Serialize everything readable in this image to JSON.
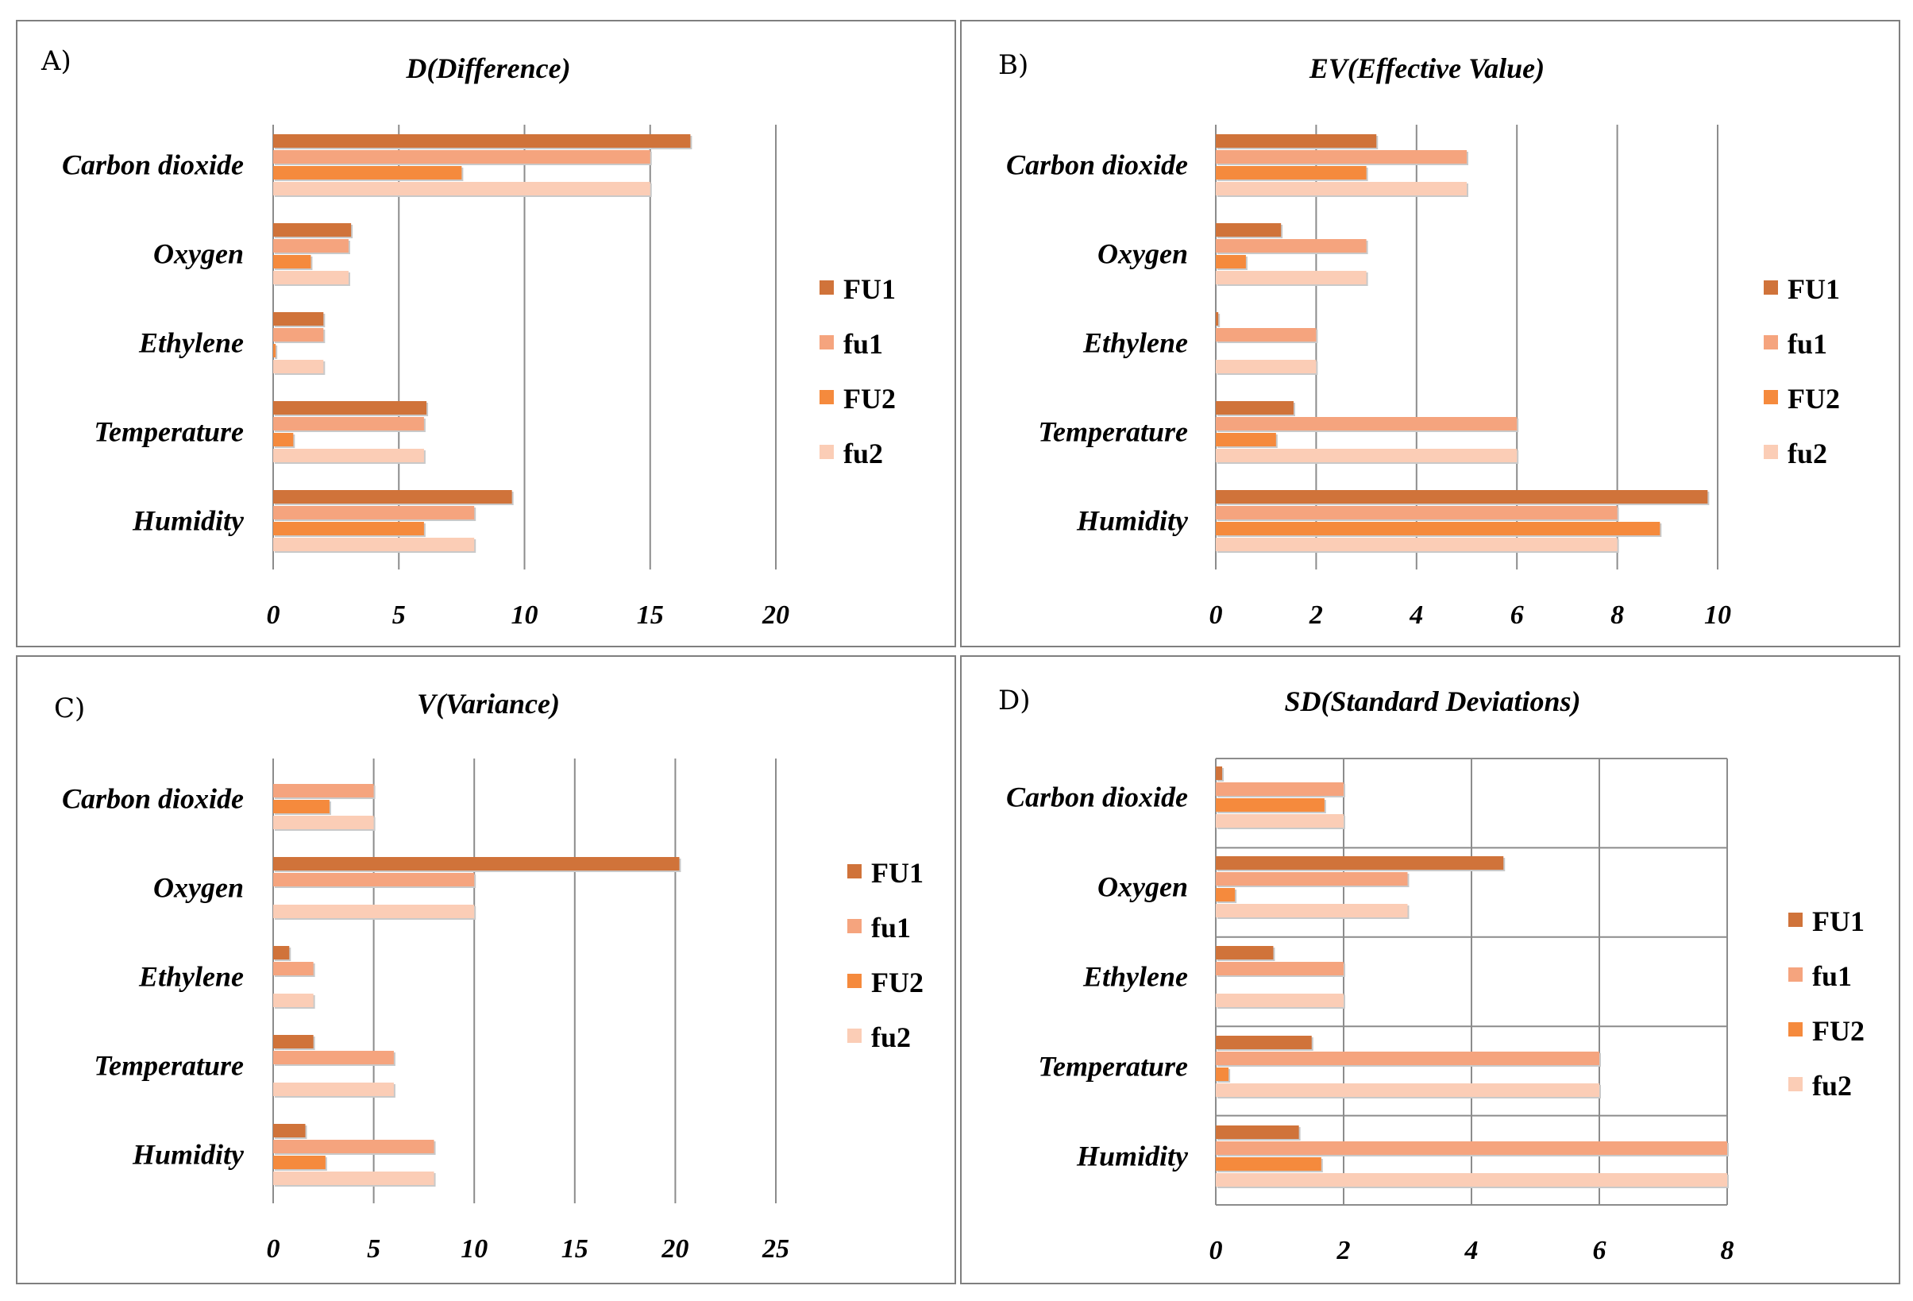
{
  "colors": {
    "FU1": "#d0733a",
    "fu1": "#f5a47e",
    "FU2": "#f58a3d",
    "fu2": "#fbcdb6",
    "grid": "#8c8c8c",
    "border": "#7f7f7f"
  },
  "chart_data": [
    {
      "type": "bar",
      "orientation": "horizontal",
      "panel": "A)",
      "title": "D(Difference)",
      "categories": [
        "Carbon dioxide",
        "Oxygen",
        "Ethylene",
        "Temperature",
        "Humidity"
      ],
      "xlim": [
        0,
        20
      ],
      "ticks": [
        "0",
        "5",
        "10",
        "15",
        "20"
      ],
      "legend_position": "right",
      "gridlines": "vertical",
      "series": [
        {
          "name": "FU1",
          "values": [
            16.6,
            3.1,
            2.0,
            6.1,
            9.5
          ]
        },
        {
          "name": "fu1",
          "values": [
            15.0,
            3.0,
            2.0,
            6.0,
            8.0
          ]
        },
        {
          "name": "FU2",
          "values": [
            7.5,
            1.5,
            0.1,
            0.8,
            6.0
          ]
        },
        {
          "name": "fu2",
          "values": [
            15.0,
            3.0,
            2.0,
            6.0,
            8.0
          ]
        }
      ]
    },
    {
      "type": "bar",
      "orientation": "horizontal",
      "panel": "B)",
      "title": "EV(Effective Value)",
      "categories": [
        "Carbon dioxide",
        "Oxygen",
        "Ethylene",
        "Temperature",
        "Humidity"
      ],
      "xlim": [
        0,
        10
      ],
      "ticks": [
        "0",
        "2",
        "4",
        "6",
        "8",
        "10"
      ],
      "legend_position": "right",
      "gridlines": "vertical",
      "series": [
        {
          "name": "FU1",
          "values": [
            3.2,
            1.3,
            0.05,
            1.55,
            9.8
          ]
        },
        {
          "name": "fu1",
          "values": [
            5.0,
            3.0,
            2.0,
            6.0,
            8.0
          ]
        },
        {
          "name": "FU2",
          "values": [
            3.0,
            0.6,
            0.0,
            1.2,
            8.85
          ]
        },
        {
          "name": "fu2",
          "values": [
            5.0,
            3.0,
            2.0,
            6.0,
            8.0
          ]
        }
      ]
    },
    {
      "type": "bar",
      "orientation": "horizontal",
      "panel": "C)",
      "title": "V(Variance)",
      "categories": [
        "Carbon dioxide",
        "Oxygen",
        "Ethylene",
        "Temperature",
        "Humidity"
      ],
      "xlim": [
        0,
        25
      ],
      "ticks": [
        "0",
        "5",
        "10",
        "15",
        "20",
        "25"
      ],
      "legend_position": "right",
      "gridlines": "vertical",
      "series": [
        {
          "name": "FU1",
          "values": [
            0.0,
            20.2,
            0.8,
            2.0,
            1.6
          ]
        },
        {
          "name": "fu1",
          "values": [
            5.0,
            10.0,
            2.0,
            6.0,
            8.0
          ]
        },
        {
          "name": "FU2",
          "values": [
            2.8,
            0.0,
            0.0,
            0.0,
            2.6
          ]
        },
        {
          "name": "fu2",
          "values": [
            5.0,
            10.0,
            2.0,
            6.0,
            8.0
          ]
        }
      ]
    },
    {
      "type": "bar",
      "orientation": "horizontal",
      "panel": "D)",
      "title": "SD(Standard Deviations)",
      "categories": [
        "Carbon dioxide",
        "Oxygen",
        "Ethylene",
        "Temperature",
        "Humidity"
      ],
      "xlim": [
        0,
        8
      ],
      "ticks": [
        "0",
        "2",
        "4",
        "6",
        "8"
      ],
      "legend_position": "right",
      "gridlines": "both",
      "series": [
        {
          "name": "FU1",
          "values": [
            0.1,
            4.5,
            0.9,
            1.5,
            1.3
          ]
        },
        {
          "name": "fu1",
          "values": [
            2.0,
            3.0,
            2.0,
            6.0,
            8.0
          ]
        },
        {
          "name": "FU2",
          "values": [
            1.7,
            0.3,
            0.0,
            0.2,
            1.65
          ]
        },
        {
          "name": "fu2",
          "values": [
            2.0,
            3.0,
            2.0,
            6.0,
            8.0
          ]
        }
      ]
    }
  ]
}
